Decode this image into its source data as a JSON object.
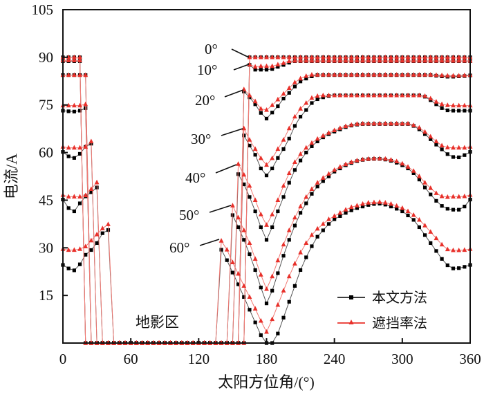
{
  "chart_data": {
    "type": "line",
    "title": "",
    "xlabel": "太阳方位角/(°)",
    "ylabel": "电流/A",
    "xlim": [
      0,
      360
    ],
    "ylim": [
      0,
      105
    ],
    "xticks": [
      0,
      60,
      120,
      180,
      240,
      300,
      360
    ],
    "yticks": [
      15,
      30,
      45,
      60,
      75,
      90,
      105
    ],
    "grid": false,
    "legend": {
      "placement": "bottom-right",
      "entries": [
        "本文方法",
        "遮挡率法"
      ]
    },
    "annotations": {
      "shadow_region": "地影区"
    },
    "x_start": 0,
    "x_step": 5,
    "colors": {
      "本文方法": "#000000",
      "遮挡率法": "#e8302a"
    },
    "groups": [
      {
        "label": "0°",
        "本文方法": [
          90,
          90,
          90,
          90,
          0,
          0,
          0,
          0,
          0,
          0,
          0,
          0,
          0,
          0,
          0,
          0,
          0,
          0,
          0,
          0,
          0,
          0,
          0,
          0,
          0,
          0,
          0,
          0,
          0,
          0,
          0,
          0,
          0,
          90,
          90,
          90,
          90,
          90,
          90,
          90,
          90,
          90,
          90,
          90,
          90,
          90,
          90,
          90,
          90,
          90,
          90,
          90,
          90,
          90,
          90,
          90,
          90,
          90,
          90,
          90,
          90,
          90,
          90,
          90,
          90,
          90,
          90,
          90,
          90,
          90,
          90,
          90,
          90
        ],
        "遮挡率法": [
          90,
          90,
          90,
          90,
          0,
          0,
          0,
          0,
          0,
          0,
          0,
          0,
          0,
          0,
          0,
          0,
          0,
          0,
          0,
          0,
          0,
          0,
          0,
          0,
          0,
          0,
          0,
          0,
          0,
          0,
          0,
          0,
          0,
          90,
          90,
          90,
          90,
          90,
          90,
          90,
          90,
          90,
          90,
          90,
          90,
          90,
          90,
          90,
          90,
          90,
          90,
          90,
          90,
          90,
          90,
          90,
          90,
          90,
          90,
          90,
          90,
          90,
          90,
          90,
          90,
          90,
          90,
          90,
          90,
          90,
          90,
          90,
          90
        ]
      },
      {
        "label": "10°",
        "本文方法": [
          88.8,
          88.8,
          88.8,
          88.8,
          0,
          0,
          0,
          0,
          0,
          0,
          0,
          0,
          0,
          0,
          0,
          0,
          0,
          0,
          0,
          0,
          0,
          0,
          0,
          0,
          0,
          0,
          0,
          0,
          0,
          0,
          0,
          0,
          0,
          87.6,
          86.1,
          86.1,
          86.1,
          86.3,
          87,
          87.6,
          88.3,
          88.8,
          88.8,
          88.8,
          88.8,
          88.8,
          88.8,
          88.8,
          88.8,
          88.8,
          88.8,
          88.8,
          88.8,
          88.8,
          88.8,
          88.8,
          88.8,
          88.8,
          88.8,
          88.8,
          88.8,
          88.8,
          88.8,
          88.8,
          88.8,
          88.8,
          88.8,
          88.8,
          88.8,
          88.8,
          88.8,
          88.8,
          88.8
        ],
        "遮挡率法": [
          89,
          89,
          89,
          89,
          0,
          0,
          0,
          0,
          0,
          0,
          0,
          0,
          0,
          0,
          0,
          0,
          0,
          0,
          0,
          0,
          0,
          0,
          0,
          0,
          0,
          0,
          0,
          0,
          0,
          0,
          0,
          0,
          0,
          87.7,
          87,
          87.2,
          87.2,
          87.2,
          87.7,
          88.2,
          88.8,
          88.9,
          88.9,
          88.9,
          88.9,
          88.9,
          88.9,
          88.9,
          88.9,
          88.9,
          88.9,
          88.9,
          88.9,
          88.9,
          88.9,
          88.9,
          88.9,
          88.9,
          88.9,
          88.9,
          88.9,
          88.9,
          88.9,
          88.9,
          88.9,
          88.9,
          88.9,
          88.9,
          88.9,
          88.9,
          88.9,
          88.9,
          88.9
        ]
      },
      {
        "label": "20°",
        "本文方法": [
          84.4,
          84.4,
          84.4,
          84.4,
          84.4,
          0,
          0,
          0,
          0,
          0,
          0,
          0,
          0,
          0,
          0,
          0,
          0,
          0,
          0,
          0,
          0,
          0,
          0,
          0,
          0,
          0,
          0,
          0,
          0,
          0,
          0,
          0,
          79.2,
          77.4,
          75.2,
          72.5,
          70.7,
          72.6,
          74.6,
          77,
          78.8,
          80.8,
          82.4,
          83.3,
          84,
          84.4,
          84.4,
          84.4,
          84.4,
          84.4,
          84.4,
          84.4,
          84.4,
          84.4,
          84.4,
          84.4,
          84.4,
          84.4,
          84.4,
          84.4,
          84.4,
          84.4,
          84.4,
          84.4,
          84.4,
          84.4,
          84.2,
          84,
          83.9,
          83.9,
          84,
          84.1,
          84.3
        ],
        "遮挡率法": [
          84.4,
          84.4,
          84.4,
          84.4,
          84.4,
          0,
          0,
          0,
          0,
          0,
          0,
          0,
          0,
          0,
          0,
          0,
          0,
          0,
          0,
          0,
          0,
          0,
          0,
          0,
          0,
          0,
          0,
          0,
          0,
          0,
          0,
          0,
          79.9,
          78,
          76.1,
          73.8,
          73.4,
          74.9,
          76.7,
          78.5,
          80.3,
          82.1,
          83.3,
          84.1,
          84.5,
          84.5,
          84.5,
          84.5,
          84.5,
          84.5,
          84.5,
          84.5,
          84.5,
          84.5,
          84.5,
          84.5,
          84.5,
          84.5,
          84.5,
          84.5,
          84.5,
          84.5,
          84.5,
          84.5,
          84.5,
          84.5,
          84.4,
          84.3,
          84.2,
          84.2,
          84.2,
          84.3,
          84.4
        ]
      },
      {
        "label": "30°",
        "本文方法": [
          73.2,
          73,
          72.9,
          73.2,
          74,
          0,
          0,
          0,
          0,
          0,
          0,
          0,
          0,
          0,
          0,
          0,
          0,
          0,
          0,
          0,
          0,
          0,
          0,
          0,
          0,
          0,
          0,
          0,
          0,
          0,
          0,
          0,
          65.4,
          62.2,
          59.3,
          55,
          52.8,
          55,
          58.3,
          61.1,
          64.4,
          68.4,
          71.3,
          73.4,
          75.6,
          76.8,
          77.4,
          77.8,
          78,
          78,
          78,
          78,
          78,
          78,
          78,
          78,
          78,
          78,
          78,
          78,
          78,
          78,
          78,
          78,
          77.6,
          76.5,
          75.2,
          74,
          73.3,
          73.2,
          73.2,
          73.2,
          73.2
        ],
        "遮挡率法": [
          74.8,
          74.8,
          74.8,
          74.8,
          75.2,
          0,
          0,
          0,
          0,
          0,
          0,
          0,
          0,
          0,
          0,
          0,
          0,
          0,
          0,
          0,
          0,
          0,
          0,
          0,
          0,
          0,
          0,
          0,
          0,
          0,
          0,
          0,
          67.6,
          64,
          61.1,
          58.2,
          56.1,
          58.2,
          61.1,
          64,
          67.6,
          71.3,
          73.8,
          75.6,
          77.2,
          77.8,
          78,
          78,
          78,
          78,
          78,
          78,
          78,
          78,
          78,
          78,
          78,
          78,
          78,
          78,
          78,
          78,
          78,
          78,
          77.8,
          77,
          76,
          75.2,
          74.9,
          74.8,
          74.8,
          74.8,
          74.8
        ]
      },
      {
        "label": "40°",
        "本文方法": [
          60.2,
          58.8,
          58.3,
          59.6,
          61.8,
          62.8,
          0,
          0,
          0,
          0,
          0,
          0,
          0,
          0,
          0,
          0,
          0,
          0,
          0,
          0,
          0,
          0,
          0,
          0,
          0,
          0,
          0,
          0,
          0,
          0,
          0,
          53.2,
          50,
          46,
          41.5,
          36.5,
          32.5,
          36.5,
          41.5,
          46,
          50.5,
          54.5,
          57.5,
          60,
          62,
          63.5,
          64.8,
          65.8,
          66.6,
          67.3,
          68,
          68.5,
          68.8,
          69,
          69,
          69,
          69,
          69,
          69,
          69,
          69,
          69,
          68.4,
          67.3,
          65.8,
          64.2,
          62.5,
          61,
          59.5,
          58.6,
          58.5,
          59.2,
          60.2
        ],
        "遮挡率法": [
          61.8,
          61.5,
          61.5,
          61.5,
          61.8,
          63.5,
          0,
          0,
          0,
          0,
          0,
          0,
          0,
          0,
          0,
          0,
          0,
          0,
          0,
          0,
          0,
          0,
          0,
          0,
          0,
          0,
          0,
          0,
          0,
          0,
          0,
          56.4,
          53,
          49.5,
          45,
          40.5,
          37.2,
          40.5,
          45,
          49.5,
          53.5,
          57,
          59.5,
          61.5,
          63,
          64.3,
          65.3,
          66.2,
          67,
          67.7,
          68.3,
          68.7,
          69,
          69.1,
          69.1,
          69.1,
          69.1,
          69.1,
          69.1,
          69.1,
          69.1,
          69.1,
          68.6,
          67.8,
          66.5,
          65,
          63.5,
          62.2,
          61.6,
          61.5,
          61.5,
          61.5,
          61.8
        ]
      },
      {
        "label": "50°",
        "本文方法": [
          45.2,
          42.5,
          41.5,
          44,
          46.2,
          47.5,
          49,
          0,
          0,
          0,
          0,
          0,
          0,
          0,
          0,
          0,
          0,
          0,
          0,
          0,
          0,
          0,
          0,
          0,
          0,
          0,
          0,
          0,
          0,
          0,
          40.3,
          36.5,
          32.5,
          28,
          23,
          17.5,
          12.5,
          16.5,
          22,
          27.5,
          32.5,
          37,
          41,
          44,
          47,
          49.3,
          51,
          52.5,
          54,
          55,
          56,
          56.7,
          57.3,
          57.7,
          57.9,
          58,
          58,
          57.8,
          57.4,
          56.8,
          56,
          55,
          53.5,
          51.5,
          49,
          46.8,
          44.8,
          43.2,
          42.3,
          42,
          42,
          43,
          45.2
        ],
        "遮挡率法": [
          46.6,
          46.1,
          46.1,
          46.1,
          46.5,
          48.5,
          50.6,
          0,
          0,
          0,
          0,
          0,
          0,
          0,
          0,
          0,
          0,
          0,
          0,
          0,
          0,
          0,
          0,
          0,
          0,
          0,
          0,
          0,
          0,
          0,
          43.3,
          39.5,
          35.5,
          31.5,
          26.5,
          21.5,
          17,
          21,
          26,
          31,
          35.5,
          39.5,
          43,
          46,
          48.5,
          50.5,
          52,
          53.3,
          54.5,
          55.5,
          56.3,
          57,
          57.5,
          57.8,
          58,
          58.1,
          58.1,
          58,
          57.7,
          57.2,
          56.5,
          55.5,
          54.2,
          52.5,
          50.5,
          48.8,
          47.2,
          46.2,
          46,
          46.1,
          46.1,
          46.2,
          46.6
        ]
      },
      {
        "label": "60°",
        "本文方法": [
          24.6,
          23.5,
          22.9,
          24.8,
          27.8,
          29.3,
          31.5,
          34.6,
          35.6,
          0,
          0,
          0,
          0,
          0,
          0,
          0,
          0,
          0,
          0,
          0,
          0,
          0,
          0,
          0,
          0,
          0,
          0,
          0,
          29.4,
          26.1,
          22.2,
          18.5,
          14.5,
          10.5,
          6.5,
          2.5,
          0,
          0,
          3,
          8,
          13,
          18,
          23,
          27,
          30.5,
          33.5,
          35.5,
          37.5,
          39,
          40,
          41,
          41.8,
          42.5,
          43,
          43.5,
          43.8,
          43.9,
          43.6,
          43,
          42.3,
          41.5,
          40.2,
          38.8,
          36.5,
          34,
          31.5,
          29,
          26.5,
          24.5,
          23.5,
          23.6,
          24,
          24.6
        ],
        "遮挡率法": [
          29.6,
          29.3,
          29.3,
          29.6,
          30.4,
          32.3,
          34.2,
          36.1,
          37.4,
          0,
          0,
          0,
          0,
          0,
          0,
          0,
          0,
          0,
          0,
          0,
          0,
          0,
          0,
          0,
          0,
          0,
          0,
          0,
          32.2,
          29.4,
          25.4,
          21.8,
          18,
          14.5,
          10.8,
          7,
          3.5,
          7.5,
          12,
          16.5,
          21,
          25,
          28.5,
          31.5,
          34,
          36,
          37.5,
          39,
          40,
          41,
          42,
          42.8,
          43.3,
          43.8,
          44.2,
          44.3,
          44.4,
          44.2,
          43.8,
          43.2,
          42.5,
          41.5,
          40.3,
          38.8,
          37,
          35,
          33,
          31,
          29.5,
          29.2,
          29.2,
          29.3,
          29.6
        ]
      }
    ]
  }
}
